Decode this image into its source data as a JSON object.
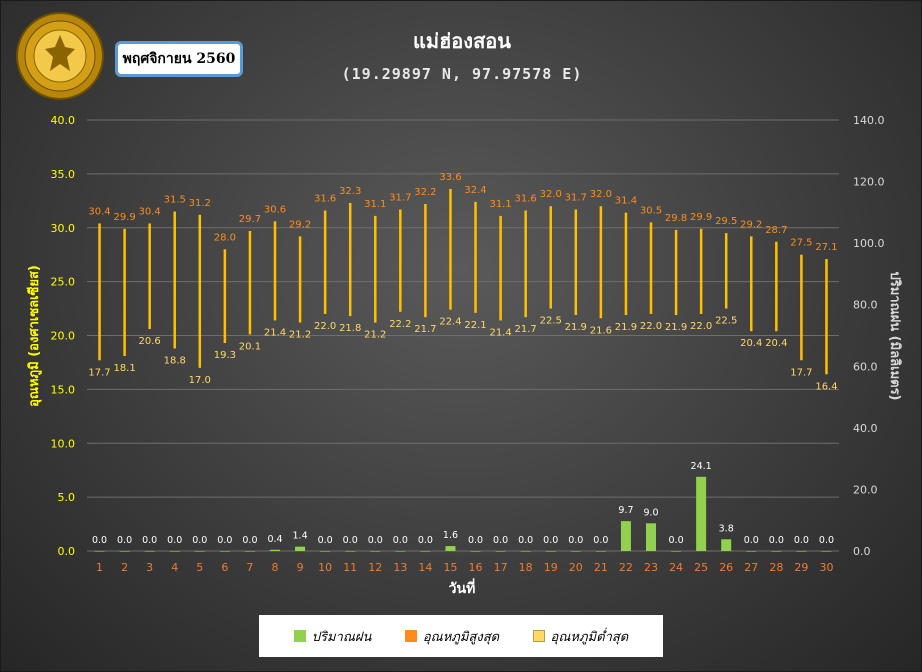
{
  "header": {
    "station_name": "แม่ฮ่องสอน",
    "coordinates": "(19.29897 N, 97.97578 E)",
    "month_label": "พฤศจิกายน 2560"
  },
  "logo": {
    "top_text": "กรมอุตุนิยมวิทยา",
    "bottom_text": "METEOROLOGICAL DEPARTMENT"
  },
  "colors": {
    "rain": "#92d050",
    "tmax": "#ff8c1a",
    "tmin": "#ffd966",
    "temp_bar": "#ffc000",
    "left_axis_text": "#ffff00",
    "right_axis_text": "#d9d9d9",
    "x_tick_text": "#ed7d31"
  },
  "chart_data": {
    "type": "bar",
    "x": [
      1,
      2,
      3,
      4,
      5,
      6,
      7,
      8,
      9,
      10,
      11,
      12,
      13,
      14,
      15,
      16,
      17,
      18,
      19,
      20,
      21,
      22,
      23,
      24,
      25,
      26,
      27,
      28,
      29,
      30
    ],
    "xlabel": "วันที่",
    "ylabel_left": "อุณหภูมิ (องศาเซลเซียส)",
    "ylabel_right": "ปริมาณฝน (มิลลิเมตร)",
    "ylim_left": [
      0,
      40
    ],
    "yticks_left": [
      "0.0",
      "5.0",
      "10.0",
      "15.0",
      "20.0",
      "25.0",
      "30.0",
      "35.0",
      "40.0"
    ],
    "ylim_right": [
      0,
      140
    ],
    "yticks_right": [
      "0.0",
      "20.0",
      "40.0",
      "60.0",
      "80.0",
      "100.0",
      "120.0",
      "140.0"
    ],
    "grid": true,
    "legend_position": "bottom",
    "series": [
      {
        "name": "ปริมาณฝน",
        "axis": "right",
        "values": [
          0.0,
          0.0,
          0.0,
          0.0,
          0.0,
          0.0,
          0.0,
          0.4,
          1.4,
          0.0,
          0.0,
          0.0,
          0.0,
          0.0,
          1.6,
          0.0,
          0.0,
          0.0,
          0.0,
          0.0,
          0.0,
          9.7,
          9.0,
          0.0,
          24.1,
          3.8,
          0.0,
          0.0,
          0.0,
          0.0
        ]
      },
      {
        "name": "อุณหภูมิสูงสุด",
        "axis": "left",
        "values": [
          30.4,
          29.9,
          30.4,
          31.5,
          31.2,
          28.0,
          29.7,
          30.6,
          29.2,
          31.6,
          32.3,
          31.1,
          31.7,
          32.2,
          33.6,
          32.4,
          31.1,
          31.6,
          32.0,
          31.7,
          32.0,
          31.4,
          30.5,
          29.8,
          29.9,
          29.5,
          29.2,
          28.7,
          27.5,
          27.1
        ]
      },
      {
        "name": "อุณหภูมิต่ำสุด",
        "axis": "left",
        "values": [
          17.7,
          18.1,
          20.6,
          18.8,
          17.0,
          19.3,
          20.1,
          21.4,
          21.2,
          22.0,
          21.8,
          21.2,
          22.2,
          21.7,
          22.4,
          22.1,
          21.4,
          21.7,
          22.5,
          21.9,
          21.6,
          21.9,
          22.0,
          21.9,
          22.0,
          22.5,
          20.4,
          20.4,
          17.7,
          16.4
        ]
      }
    ]
  }
}
